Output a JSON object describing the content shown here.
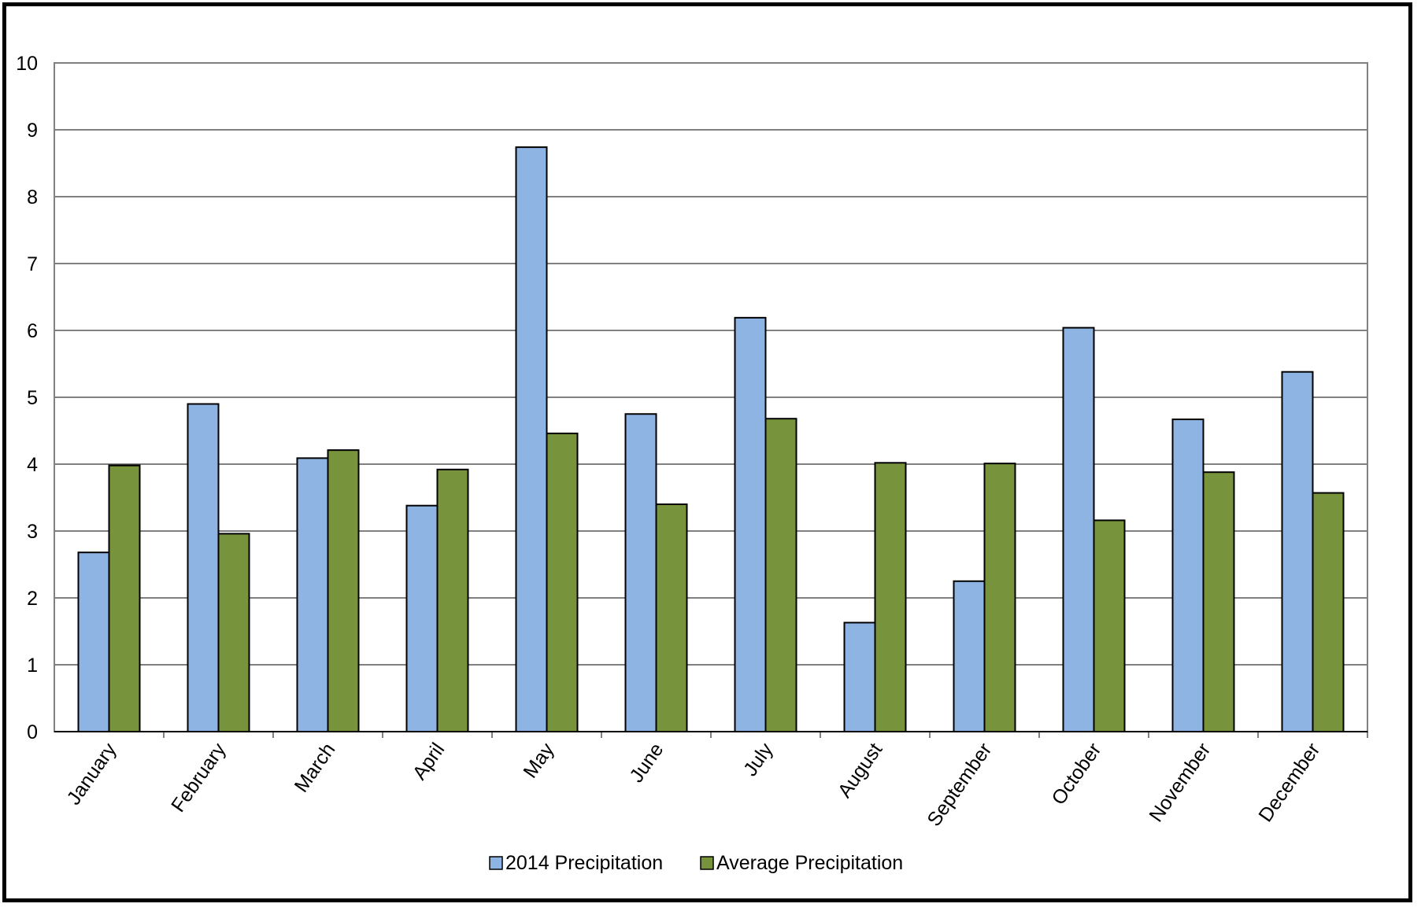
{
  "chart_data": {
    "type": "bar",
    "title": "",
    "xlabel": "",
    "ylabel": "",
    "ylim": [
      0,
      10
    ],
    "yticks": [
      "0",
      "1",
      "2",
      "3",
      "4",
      "5",
      "6",
      "7",
      "8",
      "9",
      "10"
    ],
    "grid": true,
    "legend_position": "bottom",
    "categories": [
      "January",
      "February",
      "March",
      "April",
      "May",
      "June",
      "July",
      "August",
      "September",
      "October",
      "November",
      "December"
    ],
    "series": [
      {
        "name": "2014 Precipitation",
        "color": "#8EB4E3",
        "values": [
          2.68,
          4.9,
          4.09,
          3.38,
          8.74,
          4.75,
          6.19,
          1.63,
          2.25,
          6.04,
          4.67,
          5.38
        ]
      },
      {
        "name": "Average Precipitation",
        "color": "#77933C",
        "values": [
          3.98,
          2.96,
          4.21,
          3.92,
          4.46,
          3.4,
          4.68,
          4.02,
          4.01,
          3.16,
          3.88,
          3.57
        ]
      }
    ]
  }
}
